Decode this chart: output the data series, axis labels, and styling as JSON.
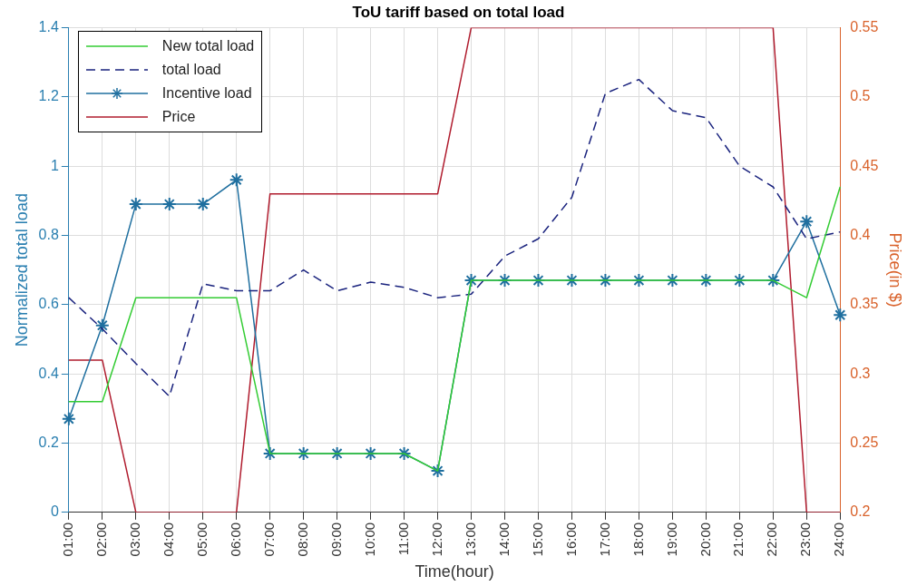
{
  "chart_data": {
    "type": "line",
    "title": "ToU tariff based on total load",
    "xlabel": "Time(hour)",
    "ylabel": "Normalized total load",
    "y2label": "Price(in $)",
    "categories": [
      "01:00",
      "02:00",
      "03:00",
      "04:00",
      "05:00",
      "06:00",
      "07:00",
      "08:00",
      "09:00",
      "10:00",
      "11:00",
      "12:00",
      "13:00",
      "14:00",
      "15:00",
      "16:00",
      "17:00",
      "18:00",
      "19:00",
      "20:00",
      "21:00",
      "22:00",
      "23:00",
      "24:00"
    ],
    "series": [
      {
        "name": "New total load",
        "color": "#33cc33",
        "line_style": "solid",
        "marker": "none",
        "values": [
          0.32,
          0.32,
          0.62,
          0.62,
          0.62,
          0.62,
          0.17,
          0.17,
          0.17,
          0.17,
          0.17,
          0.12,
          0.67,
          0.67,
          0.67,
          0.67,
          0.67,
          0.67,
          0.67,
          0.67,
          0.67,
          0.67,
          0.62,
          0.94
        ]
      },
      {
        "name": "total load",
        "color": "#1a237e",
        "line_style": "dashed",
        "marker": "none",
        "values": [
          0.62,
          0.53,
          0.43,
          0.335,
          0.66,
          0.64,
          0.64,
          0.7,
          0.64,
          0.665,
          0.65,
          0.62,
          0.63,
          0.74,
          0.79,
          0.91,
          1.21,
          1.25,
          1.16,
          1.14,
          1.0,
          0.94,
          0.79,
          0.81
        ]
      },
      {
        "name": "Incentive load",
        "color": "#1f6f9f",
        "line_style": "solid",
        "marker": "cross",
        "values": [
          0.27,
          0.54,
          0.89,
          0.89,
          0.89,
          0.96,
          0.17,
          0.17,
          0.17,
          0.17,
          0.17,
          0.12,
          0.67,
          0.67,
          0.67,
          0.67,
          0.67,
          0.67,
          0.67,
          0.67,
          0.67,
          0.67,
          0.84,
          0.57
        ]
      },
      {
        "name": "Price",
        "color": "#b01c2e",
        "line_style": "solid",
        "marker": "none",
        "axis": "y2",
        "values": [
          0.31,
          0.31,
          0.2,
          0.2,
          0.2,
          0.2,
          0.43,
          0.43,
          0.43,
          0.43,
          0.43,
          0.43,
          0.55,
          0.55,
          0.55,
          0.55,
          0.55,
          0.55,
          0.55,
          0.55,
          0.55,
          0.55,
          0.2,
          0.2
        ]
      }
    ],
    "ylim": [
      0,
      1.4
    ],
    "yticks": [
      0,
      0.2,
      0.4,
      0.6,
      0.8,
      1,
      1.2,
      1.4
    ],
    "y2lim": [
      0.2,
      0.55
    ],
    "y2ticks": [
      0.2,
      0.25,
      0.3,
      0.35,
      0.4,
      0.45,
      0.5,
      0.55
    ],
    "grid": true,
    "legend": "top left"
  }
}
